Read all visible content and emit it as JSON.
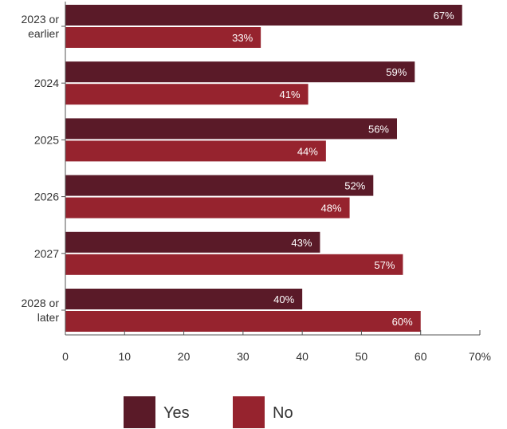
{
  "chart_data": {
    "type": "bar",
    "orientation": "horizontal",
    "categories": [
      [
        "2023 or",
        "earlier"
      ],
      [
        "2024"
      ],
      [
        "2025"
      ],
      [
        "2026"
      ],
      [
        "2027"
      ],
      [
        "2028 or",
        "later"
      ]
    ],
    "series": [
      {
        "name": "Yes",
        "color": "#5a1a28",
        "values": [
          67,
          59,
          56,
          52,
          43,
          40
        ],
        "labels": [
          "67%",
          "59%",
          "56%",
          "52%",
          "43%",
          "40%"
        ]
      },
      {
        "name": "No",
        "color": "#96232e",
        "values": [
          33,
          41,
          44,
          48,
          57,
          60
        ],
        "labels": [
          "33%",
          "41%",
          "44%",
          "48%",
          "57%",
          "60%"
        ]
      }
    ],
    "xlim": [
      0,
      70
    ],
    "xticks": [
      0,
      10,
      20,
      30,
      40,
      50,
      60,
      70
    ],
    "xtick_labels": [
      "0",
      "10",
      "20",
      "30",
      "40",
      "50",
      "60",
      "70%"
    ],
    "title": "",
    "xlabel": "",
    "ylabel": "",
    "grid": false,
    "legend_position": "bottom-center"
  },
  "colors": {
    "axis": "#555555",
    "text": "#333333",
    "data_label": "#ffffff"
  }
}
